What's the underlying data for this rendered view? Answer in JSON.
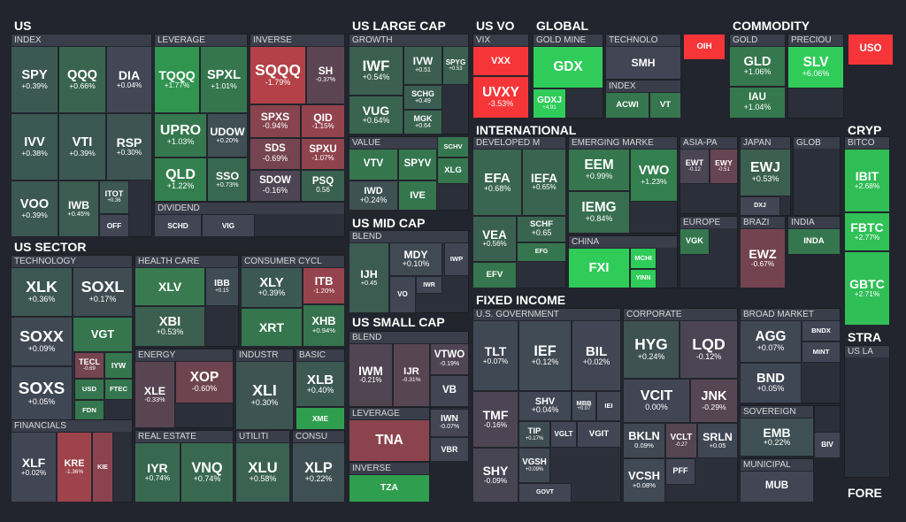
{
  "sections": [
    {
      "title": "US",
      "groups": [
        {
          "title": "INDEX",
          "tiles": [
            {
              "ticker": "SPY",
              "change": "+0.39%"
            },
            {
              "ticker": "QQQ",
              "change": "+0.66%"
            },
            {
              "ticker": "DIA",
              "change": "+0.04%"
            },
            {
              "ticker": "IVV",
              "change": "+0.38%"
            },
            {
              "ticker": "VTI",
              "change": "+0.39%"
            },
            {
              "ticker": "RSP",
              "change": "+0.30%"
            },
            {
              "ticker": "VOO",
              "change": "+0.39%"
            },
            {
              "ticker": "IWB",
              "change": "+0.45%"
            },
            {
              "ticker": "ITOT",
              "change": "+0.36"
            },
            {
              "ticker": "OFF",
              "color": "#414554"
            }
          ]
        },
        {
          "title": "LEVERAGE",
          "tiles": [
            {
              "ticker": "TQQQ",
              "change": "+1.77%"
            },
            {
              "ticker": "SPXL",
              "change": "+1.01%"
            },
            {
              "ticker": "UPRO",
              "change": "+1.03%"
            },
            {
              "ticker": "UDOW",
              "change": "+0.20%"
            },
            {
              "ticker": "QLD",
              "change": "+1.22%"
            },
            {
              "ticker": "SSO",
              "change": "+0.73%"
            }
          ]
        },
        {
          "title": "INVERSE",
          "tiles": [
            {
              "ticker": "SQQQ",
              "change": "-1.79%"
            },
            {
              "ticker": "SH",
              "change": "-0.37%"
            },
            {
              "ticker": "SPXS",
              "change": "-0.94%"
            },
            {
              "ticker": "QID",
              "change": "-1.15%"
            },
            {
              "ticker": "SDS",
              "change": "-0.69%"
            },
            {
              "ticker": "SPXU",
              "change": "-1.07%"
            },
            {
              "ticker": "SDOW",
              "change": "-0.16%"
            },
            {
              "ticker": "PSQ",
              "change": "0.56"
            }
          ]
        },
        {
          "title": "DIVIDEND",
          "tiles": [
            {
              "ticker": "SCHD",
              "color": "#414554"
            },
            {
              "ticker": "VIG",
              "color": "#414554"
            }
          ]
        }
      ]
    },
    {
      "title": "US SECTOR",
      "groups": [
        {
          "title": "TECHNOLOGY",
          "tiles": [
            {
              "ticker": "XLK",
              "change": "+0.36%"
            },
            {
              "ticker": "SOXL",
              "change": "+0.17%"
            },
            {
              "ticker": "SOXX",
              "change": "+0.09%"
            },
            {
              "ticker": "VGT",
              "color": "#35764e"
            },
            {
              "ticker": "SOXS",
              "change": "+0.05%"
            },
            {
              "ticker": "TECL",
              "change": "-0.69"
            },
            {
              "ticker": "IYW",
              "color": "#35764e"
            },
            {
              "ticker": "USD",
              "color": "#35764e"
            },
            {
              "ticker": "FTEC",
              "color": "#35764e"
            },
            {
              "ticker": "FDN",
              "color": "#35764e"
            }
          ]
        },
        {
          "title": "FINANCIALS",
          "tiles": [
            {
              "ticker": "XLF",
              "change": "+0.02%"
            },
            {
              "ticker": "KRE",
              "change": "-1.36%"
            },
            {
              "ticker": "KIE",
              "color": "#8b444e"
            }
          ]
        },
        {
          "title": "HEALTH CARE",
          "tiles": [
            {
              "ticker": "XLV",
              "color": "#3a7a50"
            },
            {
              "ticker": "IBB",
              "change": "+0.15"
            },
            {
              "ticker": "XBI",
              "change": "+0.53%"
            }
          ]
        },
        {
          "title": "ENERGY",
          "tiles": [
            {
              "ticker": "XLE",
              "change": "-0.33%"
            },
            {
              "ticker": "XOP",
              "change": "-0.60%"
            }
          ]
        },
        {
          "title": "REAL ESTATE",
          "tiles": [
            {
              "ticker": "IYR",
              "change": "+0.74%"
            },
            {
              "ticker": "VNQ",
              "change": "+0.74%"
            }
          ]
        },
        {
          "title": "CONSUMER CYCL",
          "tiles": [
            {
              "ticker": "XLY",
              "change": "+0.39%"
            },
            {
              "ticker": "ITB",
              "change": "-1.20%"
            },
            {
              "ticker": "XRT",
              "color": "#35764e"
            },
            {
              "ticker": "XHB",
              "change": "+0.94%"
            }
          ]
        },
        {
          "title": "INDUSTR",
          "tiles": [
            {
              "ticker": "XLI",
              "change": "+0.30%"
            }
          ]
        },
        {
          "title": "BASIC",
          "tiles": [
            {
              "ticker": "XLB",
              "change": "+0.40%"
            },
            {
              "ticker": "XME",
              "color": "#2f9e4f"
            }
          ]
        },
        {
          "title": "UTILITI",
          "tiles": [
            {
              "ticker": "XLU",
              "change": "+0.58%"
            }
          ]
        },
        {
          "title": "CONSU",
          "tiles": [
            {
              "ticker": "XLP",
              "change": "+0.22%"
            }
          ]
        }
      ]
    },
    {
      "title": "US LARGE CAP",
      "groups": [
        {
          "title": "GROWTH",
          "tiles": [
            {
              "ticker": "IWF",
              "change": "+0.54%"
            },
            {
              "ticker": "IVW",
              "change": "+0.51"
            },
            {
              "ticker": "SPYG",
              "change": "+0.53"
            },
            {
              "ticker": "VUG",
              "change": "+0.64%"
            },
            {
              "ticker": "SCHG",
              "change": "+0.49"
            },
            {
              "ticker": "MGK",
              "change": "+0.64"
            }
          ]
        },
        {
          "title": "VALUE",
          "tiles": [
            {
              "ticker": "VTV",
              "color": "#35764e"
            },
            {
              "ticker": "SPYV",
              "color": "#35764e"
            },
            {
              "ticker": "SCHV",
              "color": "#35764e"
            },
            {
              "ticker": "XLG",
              "color": "#35764e"
            },
            {
              "ticker": "IWD",
              "change": "+0.24%"
            },
            {
              "ticker": "IVE",
              "color": "#35764e"
            }
          ]
        }
      ]
    },
    {
      "title": "US MID CAP",
      "groups": [
        {
          "title": "BLEND",
          "tiles": [
            {
              "ticker": "MDY",
              "change": "+0.10%"
            },
            {
              "ticker": "IJH",
              "change": "+0.45"
            },
            {
              "ticker": "VO",
              "color": "#414554"
            },
            {
              "ticker": "IWR",
              "color": "#414554"
            },
            {
              "ticker": "IWP",
              "color": "#414554"
            }
          ]
        }
      ]
    },
    {
      "title": "US SMALL CAP",
      "groups": [
        {
          "title": "BLEND",
          "tiles": [
            {
              "ticker": "IWM",
              "change": "-0.21%"
            },
            {
              "ticker": "IJR",
              "change": "-0.31%"
            },
            {
              "ticker": "VTWO",
              "change": "-0.19%"
            },
            {
              "ticker": "VB",
              "color": "#414554"
            }
          ]
        },
        {
          "title": "LEVERAGE",
          "tiles": [
            {
              "ticker": "TNA",
              "color": "#8b444e"
            }
          ]
        },
        {
          "tiles": [
            {
              "ticker": "IWN",
              "change": "-0.07%"
            },
            {
              "ticker": "VBR",
              "color": "#414554"
            }
          ]
        },
        {
          "title": "INVERSE",
          "tiles": [
            {
              "ticker": "TZA",
              "color": "#2f9e4f"
            }
          ]
        }
      ]
    },
    {
      "title": "US VO",
      "groups": [
        {
          "title": "VIX",
          "tiles": [
            {
              "ticker": "VXX",
              "color": "#f63538"
            },
            {
              "ticker": "UVXY",
              "change": "-3.53%"
            }
          ]
        }
      ]
    },
    {
      "title": "GLOBAL",
      "groups": [
        {
          "title": "GOLD MINE",
          "tiles": [
            {
              "ticker": "GDX",
              "color": "#30cc5a"
            },
            {
              "ticker": "GDXJ",
              "change": "+4.91"
            }
          ]
        },
        {
          "title": "TECHNOLO",
          "tiles": [
            {
              "ticker": "SMH",
              "color": "#414554"
            }
          ]
        },
        {
          "title": "INDEX",
          "tiles": [
            {
              "ticker": "ACWI",
              "color": "#35764e"
            },
            {
              "ticker": "VT",
              "color": "#35764e"
            }
          ]
        }
      ]
    },
    {
      "groups": [
        {
          "tiles": [
            {
              "ticker": "OIH",
              "color": "#f63538"
            }
          ]
        }
      ]
    },
    {
      "title": "COMMODITY",
      "groups": [
        {
          "title": "GOLD",
          "tiles": [
            {
              "ticker": "GLD",
              "change": "+1.06%"
            },
            {
              "ticker": "IAU",
              "change": "+1.04%"
            }
          ]
        },
        {
          "title": "PRECIOU",
          "tiles": [
            {
              "ticker": "SLV",
              "change": "+6.06%"
            }
          ]
        }
      ]
    },
    {
      "groups": [
        {
          "tiles": [
            {
              "ticker": "USO",
              "color": "#f63538"
            }
          ]
        }
      ]
    },
    {
      "title": "INTERNATIONAL",
      "groups": [
        {
          "title": "DEVELOPED M",
          "tiles": [
            {
              "ticker": "EFA",
              "change": "+0.68%"
            },
            {
              "ticker": "IEFA",
              "change": "+0.65%"
            },
            {
              "ticker": "VEA",
              "change": "+0.56%"
            },
            {
              "ticker": "SCHF",
              "change": "+0.65"
            },
            {
              "ticker": "EFG",
              "color": "#35764e"
            },
            {
              "ticker": "EFV",
              "color": "#35764e"
            }
          ]
        },
        {
          "title": "EMERGING MARKE",
          "tiles": [
            {
              "ticker": "EEM",
              "change": "+0.99%"
            },
            {
              "ticker": "VWO",
              "change": "+1.23%"
            },
            {
              "ticker": "IEMG",
              "change": "+0.84%"
            }
          ]
        },
        {
          "title": "CHINA",
          "tiles": [
            {
              "ticker": "FXI",
              "color": "#30cc5a"
            },
            {
              "ticker": "MCHI",
              "color": "#30cc5a"
            },
            {
              "ticker": "YINN",
              "color": "#30cc5a"
            }
          ]
        },
        {
          "title": "ASIA-PA",
          "tiles": [
            {
              "ticker": "EWT",
              "change": "-0.12"
            },
            {
              "ticker": "EWY",
              "change": "-0.51"
            }
          ]
        },
        {
          "title": "EUROPE",
          "tiles": [
            {
              "ticker": "VGK",
              "color": "#35764e"
            }
          ]
        },
        {
          "title": "JAPAN",
          "tiles": [
            {
              "ticker": "EWJ",
              "change": "+0.53%"
            },
            {
              "ticker": "DXJ",
              "color": "#414554"
            }
          ]
        },
        {
          "title": "GLOB",
          "tiles": []
        },
        {
          "title": "BRAZI",
          "tiles": [
            {
              "ticker": "EWZ",
              "change": "-0.67%"
            }
          ]
        },
        {
          "title": "INDIA",
          "tiles": [
            {
              "ticker": "INDA",
              "color": "#35764e"
            }
          ]
        }
      ]
    },
    {
      "title": "CRYP",
      "groups": [
        {
          "title": "BITCO",
          "tiles": [
            {
              "ticker": "IBIT",
              "change": "+2.68%"
            },
            {
              "ticker": "FBTC",
              "change": "+2.77%"
            },
            {
              "ticker": "GBTC",
              "change": "+2.71%"
            }
          ]
        }
      ]
    },
    {
      "title": "FIXED INCOME",
      "groups": [
        {
          "title": "U.S. GOVERNMENT",
          "tiles": [
            {
              "ticker": "TLT",
              "change": "+0.07%"
            },
            {
              "ticker": "IEF",
              "change": "+0.12%"
            },
            {
              "ticker": "BIL",
              "change": "+0.02%"
            },
            {
              "ticker": "TMF",
              "change": "-0.16%"
            },
            {
              "ticker": "SHV",
              "change": "+0.04%"
            },
            {
              "ticker": "MBB",
              "change": "+0.07"
            },
            {
              "ticker": "IEI",
              "color": "#414554"
            },
            {
              "ticker": "TIP",
              "change": "+0.17%"
            },
            {
              "ticker": "VGLT",
              "color": "#414554"
            },
            {
              "ticker": "VGIT",
              "color": "#414554"
            },
            {
              "ticker": "SHY",
              "change": "-0.09%"
            },
            {
              "ticker": "VGSH",
              "change": "+0.09%"
            },
            {
              "ticker": "GOVT",
              "color": "#414554"
            }
          ]
        },
        {
          "title": "CORPORATE",
          "tiles": [
            {
              "ticker": "HYG",
              "change": "+0.24%"
            },
            {
              "ticker": "LQD",
              "change": "-0.12%"
            },
            {
              "ticker": "VCIT",
              "change": "0.00%"
            },
            {
              "ticker": "JNK",
              "change": "-0.29%"
            },
            {
              "ticker": "BKLN",
              "change": "0.09%"
            },
            {
              "ticker": "VCLT",
              "change": "-0.27"
            },
            {
              "ticker": "SRLN",
              "change": "+0.05"
            },
            {
              "ticker": "VCSH",
              "change": "+0.08%"
            },
            {
              "ticker": "PFF",
              "color": "#414554"
            }
          ]
        },
        {
          "title": "BROAD MARKET",
          "tiles": [
            {
              "ticker": "AGG",
              "change": "+0.07%"
            },
            {
              "ticker": "BNDX",
              "color": "#414554"
            },
            {
              "ticker": "MINT",
              "color": "#414554"
            },
            {
              "ticker": "BND",
              "change": "+0.05%"
            }
          ]
        },
        {
          "title": "SOVEREIGN",
          "tiles": [
            {
              "ticker": "EMB",
              "change": "+0.22%"
            }
          ]
        },
        {
          "title": "MUNICIPAL",
          "tiles": [
            {
              "ticker": "MUB",
              "color": "#414554"
            }
          ]
        },
        {
          "tiles": [
            {
              "ticker": "BIV",
              "color": "#414554"
            }
          ]
        }
      ]
    },
    {
      "title": "STRA",
      "groups": [
        {
          "title": "US LA",
          "tiles": []
        }
      ]
    },
    {
      "title": "FORE",
      "groups": []
    }
  ]
}
